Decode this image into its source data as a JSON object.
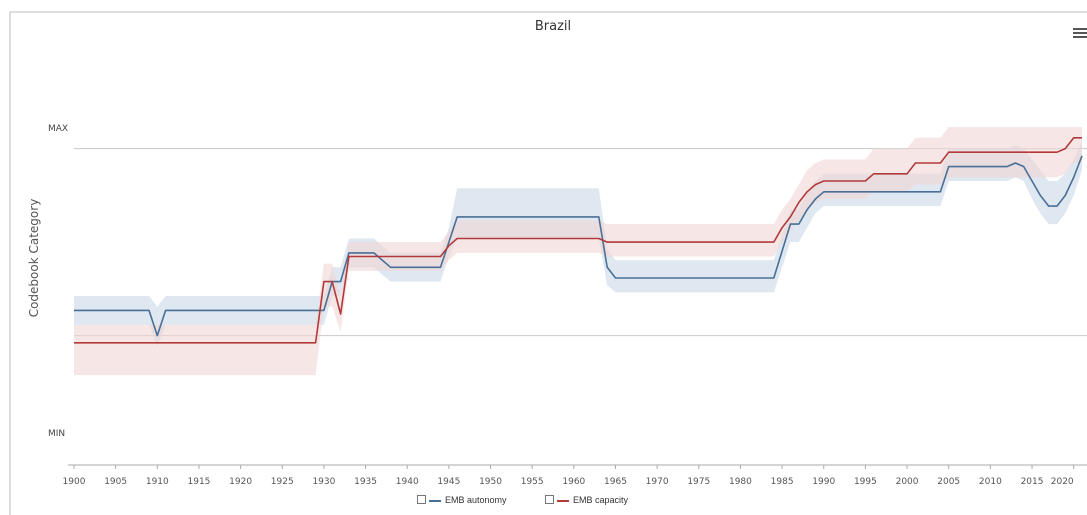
{
  "menu_icon": "hamburger-menu-icon",
  "chart_data": {
    "type": "line",
    "title": "Brazil",
    "ylabel": "Codebook Category",
    "xlabel": "",
    "y_tick_labels": [
      "MAX",
      "MIN"
    ],
    "x_ticks": [
      1900,
      1905,
      1910,
      1915,
      1920,
      1925,
      1930,
      1935,
      1940,
      1945,
      1950,
      1955,
      1960,
      1965,
      1970,
      1975,
      1980,
      1985,
      1990,
      1995,
      2000,
      2005,
      2010,
      2015,
      2020
    ],
    "xlim": [
      1900,
      2021
    ],
    "ylim": [
      0,
      1.26
    ],
    "grid_y": [
      0.36,
      0.88
    ],
    "legend": "bottom-center",
    "series": [
      {
        "name": "EMB autonomy",
        "color": "#4a6f96",
        "band_color": "#c9d9e8",
        "x": [
          1900,
          1909,
          1910,
          1911,
          1929,
          1930,
          1931,
          1932,
          1933,
          1936,
          1937,
          1938,
          1944,
          1945,
          1946,
          1955,
          1963,
          1964,
          1965,
          1975,
          1984,
          1986,
          1987,
          1988,
          1989,
          1990,
          1995,
          2000,
          2004,
          2005,
          2010,
          2012,
          2013,
          2014,
          2015,
          2016,
          2017,
          2018,
          2019,
          2020,
          2021
        ],
        "values": [
          0.43,
          0.43,
          0.36,
          0.43,
          0.43,
          0.43,
          0.51,
          0.51,
          0.59,
          0.59,
          0.57,
          0.55,
          0.55,
          0.62,
          0.69,
          0.69,
          0.69,
          0.55,
          0.52,
          0.52,
          0.52,
          0.67,
          0.67,
          0.71,
          0.74,
          0.76,
          0.76,
          0.76,
          0.76,
          0.83,
          0.83,
          0.83,
          0.84,
          0.83,
          0.79,
          0.75,
          0.72,
          0.72,
          0.75,
          0.8,
          0.86
        ],
        "upper": [
          0.47,
          0.47,
          0.44,
          0.47,
          0.47,
          0.47,
          0.55,
          0.55,
          0.63,
          0.63,
          0.61,
          0.59,
          0.59,
          0.66,
          0.77,
          0.77,
          0.77,
          0.6,
          0.57,
          0.57,
          0.57,
          0.71,
          0.71,
          0.76,
          0.79,
          0.81,
          0.81,
          0.81,
          0.81,
          0.88,
          0.88,
          0.88,
          0.89,
          0.88,
          0.85,
          0.82,
          0.79,
          0.79,
          0.81,
          0.85,
          0.9
        ],
        "lower": [
          0.39,
          0.39,
          0.33,
          0.39,
          0.39,
          0.39,
          0.47,
          0.47,
          0.55,
          0.55,
          0.53,
          0.51,
          0.51,
          0.58,
          0.63,
          0.63,
          0.63,
          0.5,
          0.48,
          0.48,
          0.48,
          0.62,
          0.62,
          0.66,
          0.7,
          0.72,
          0.72,
          0.72,
          0.72,
          0.79,
          0.79,
          0.79,
          0.8,
          0.79,
          0.74,
          0.7,
          0.67,
          0.67,
          0.7,
          0.75,
          0.82
        ]
      },
      {
        "name": "EMB capacity",
        "color": "#b23a3a",
        "band_color": "#f0d6d6",
        "x": [
          1900,
          1910,
          1929,
          1930,
          1931,
          1932,
          1933,
          1937,
          1944,
          1945,
          1946,
          1955,
          1963,
          1964,
          1965,
          1984,
          1985,
          1986,
          1987,
          1988,
          1989,
          1990,
          1995,
          1996,
          2000,
          2001,
          2004,
          2005,
          2012,
          2015,
          2018,
          2019,
          2020,
          2021
        ],
        "values": [
          0.34,
          0.34,
          0.34,
          0.51,
          0.51,
          0.42,
          0.58,
          0.58,
          0.58,
          0.61,
          0.63,
          0.63,
          0.63,
          0.62,
          0.62,
          0.62,
          0.66,
          0.69,
          0.73,
          0.76,
          0.78,
          0.79,
          0.79,
          0.81,
          0.81,
          0.84,
          0.84,
          0.87,
          0.87,
          0.87,
          0.87,
          0.88,
          0.91,
          0.91
        ],
        "upper": [
          0.39,
          0.39,
          0.39,
          0.56,
          0.56,
          0.47,
          0.62,
          0.62,
          0.62,
          0.65,
          0.68,
          0.68,
          0.68,
          0.67,
          0.67,
          0.67,
          0.71,
          0.74,
          0.78,
          0.82,
          0.84,
          0.85,
          0.85,
          0.88,
          0.88,
          0.91,
          0.91,
          0.94,
          0.94,
          0.94,
          0.94,
          0.94,
          0.94,
          0.94
        ],
        "lower": [
          0.25,
          0.25,
          0.25,
          0.44,
          0.44,
          0.37,
          0.54,
          0.54,
          0.54,
          0.57,
          0.59,
          0.59,
          0.59,
          0.58,
          0.58,
          0.58,
          0.62,
          0.65,
          0.68,
          0.71,
          0.73,
          0.74,
          0.74,
          0.76,
          0.76,
          0.78,
          0.78,
          0.8,
          0.8,
          0.8,
          0.8,
          0.81,
          0.84,
          0.84
        ]
      }
    ]
  }
}
